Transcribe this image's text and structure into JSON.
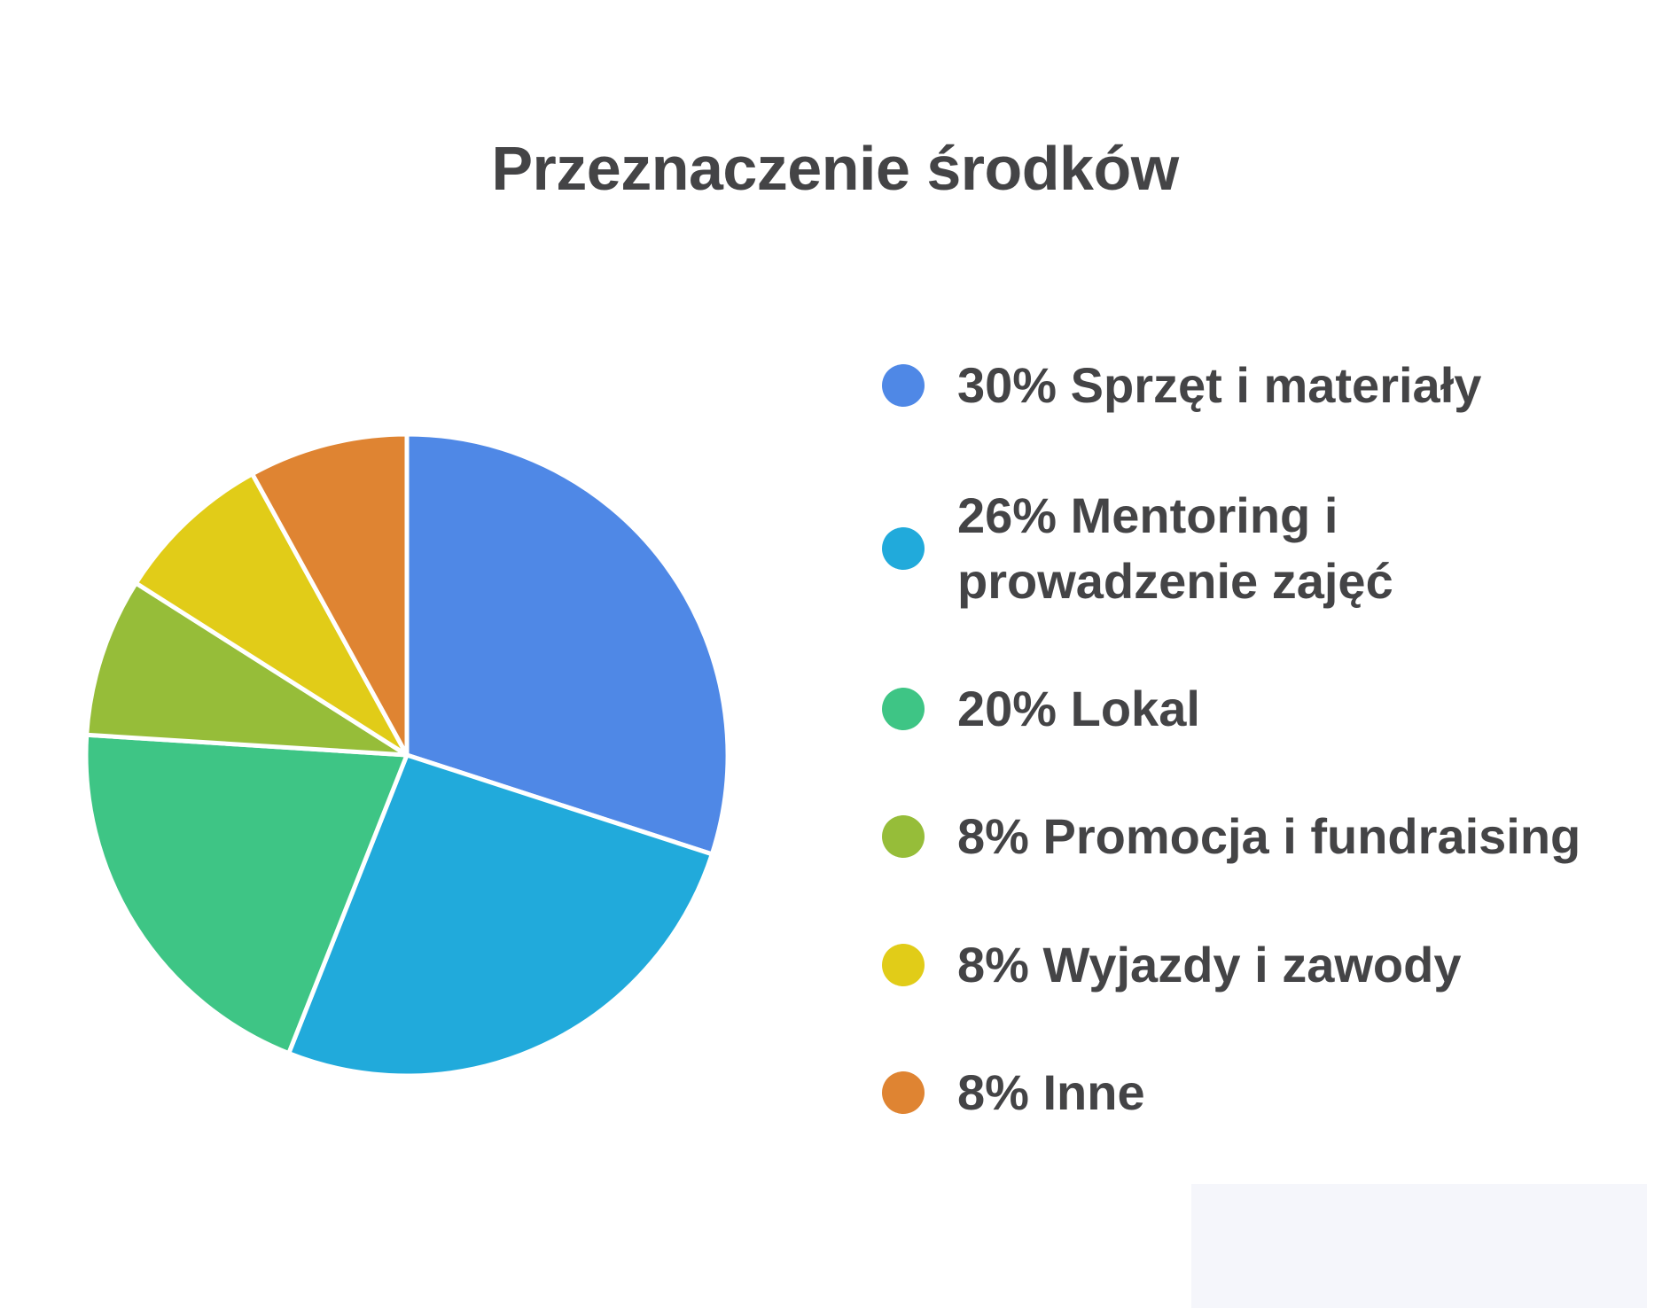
{
  "chart_data": {
    "type": "pie",
    "title": "Przeznaczenie środków",
    "start_angle_deg": 0,
    "direction": "clockwise",
    "legend_position": "right",
    "slices": [
      {
        "value": 30,
        "label": "30% Sprzęt i materiały",
        "color": "#4f88e6"
      },
      {
        "value": 26,
        "label": "26% Mentoring i prowadzenie zajęć",
        "color": "#21aadb"
      },
      {
        "value": 20,
        "label": "20% Lokal",
        "color": "#3ec585"
      },
      {
        "value": 8,
        "label": "8% Promocja i fundraising",
        "color": "#96bd39"
      },
      {
        "value": 8,
        "label": "8% Wyjazdy i zawody",
        "color": "#e1cc18"
      },
      {
        "value": 8,
        "label": "8% Inne",
        "color": "#df8432"
      }
    ]
  }
}
